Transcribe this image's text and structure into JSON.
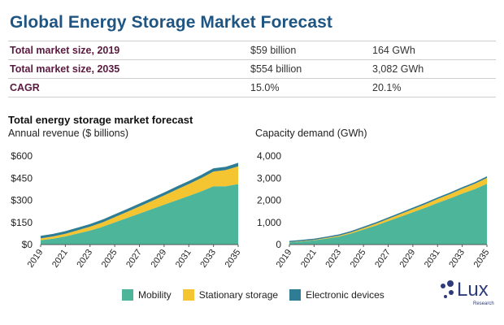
{
  "title": "Global Energy Storage Market Forecast",
  "summary": [
    {
      "label": "Total market size, 2019",
      "v1": "$59 billion",
      "v2": "164 GWh"
    },
    {
      "label": "Total market size, 2035",
      "v1": "$554 billion",
      "v2": "3,082 GWh"
    },
    {
      "label": "CAGR",
      "v1": "15.0%",
      "v2": "20.1%"
    }
  ],
  "section_title": "Total energy storage market forecast",
  "colors": {
    "mobility": "#4cb59a",
    "stationary": "#f4c431",
    "electronic": "#2f7d95"
  },
  "legend": [
    "Mobility",
    "Stationary storage",
    "Electronic devices"
  ],
  "logo": {
    "text": "Lux",
    "subtext": "Research"
  },
  "chart_data": [
    {
      "type": "area",
      "title": "Annual revenue ($ billions)",
      "xlabel": "",
      "ylabel": "",
      "x": [
        2019,
        2020,
        2021,
        2022,
        2023,
        2024,
        2025,
        2026,
        2027,
        2028,
        2029,
        2030,
        2031,
        2032,
        2033,
        2034,
        2035
      ],
      "xticks": [
        "2019",
        "2021",
        "2023",
        "2025",
        "2027",
        "2029",
        "2031",
        "2033",
        "2035"
      ],
      "yticks": [
        "$0",
        "$150",
        "$300",
        "$450",
        "$600"
      ],
      "ylim": [
        0,
        600
      ],
      "stacked": true,
      "series": [
        {
          "name": "Mobility",
          "values": [
            30,
            40,
            55,
            75,
            95,
            120,
            150,
            180,
            210,
            240,
            270,
            300,
            330,
            360,
            395,
            395,
            410
          ]
        },
        {
          "name": "Stationary storage",
          "values": [
            12,
            15,
            18,
            22,
            26,
            30,
            36,
            42,
            48,
            55,
            63,
            72,
            80,
            90,
            100,
            110,
            120
          ]
        },
        {
          "name": "Electronic devices",
          "values": [
            17,
            17,
            18,
            18,
            18,
            19,
            19,
            19,
            20,
            20,
            20,
            21,
            21,
            21,
            22,
            22,
            24
          ]
        }
      ]
    },
    {
      "type": "area",
      "title": "Capacity demand (GWh)",
      "xlabel": "",
      "ylabel": "",
      "x": [
        2019,
        2020,
        2021,
        2022,
        2023,
        2024,
        2025,
        2026,
        2027,
        2028,
        2029,
        2030,
        2031,
        2032,
        2033,
        2034,
        2035
      ],
      "xticks": [
        "2019",
        "2021",
        "2023",
        "2025",
        "2027",
        "2029",
        "2031",
        "2033",
        "2035"
      ],
      "yticks": [
        "0",
        "1,000",
        "2,000",
        "3,000",
        "4,000"
      ],
      "ylim": [
        0,
        4000
      ],
      "stacked": true,
      "series": [
        {
          "name": "Mobility",
          "values": [
            100,
            140,
            190,
            270,
            360,
            500,
            680,
            860,
            1060,
            1260,
            1460,
            1660,
            1880,
            2080,
            2300,
            2500,
            2750
          ]
        },
        {
          "name": "Stationary storage",
          "values": [
            10,
            15,
            20,
            30,
            40,
            50,
            65,
            80,
            100,
            120,
            140,
            160,
            180,
            200,
            220,
            240,
            260
          ]
        },
        {
          "name": "Electronic devices",
          "values": [
            54,
            55,
            57,
            58,
            60,
            61,
            63,
            64,
            66,
            67,
            68,
            69,
            70,
            70,
            71,
            71,
            72
          ]
        }
      ]
    }
  ]
}
